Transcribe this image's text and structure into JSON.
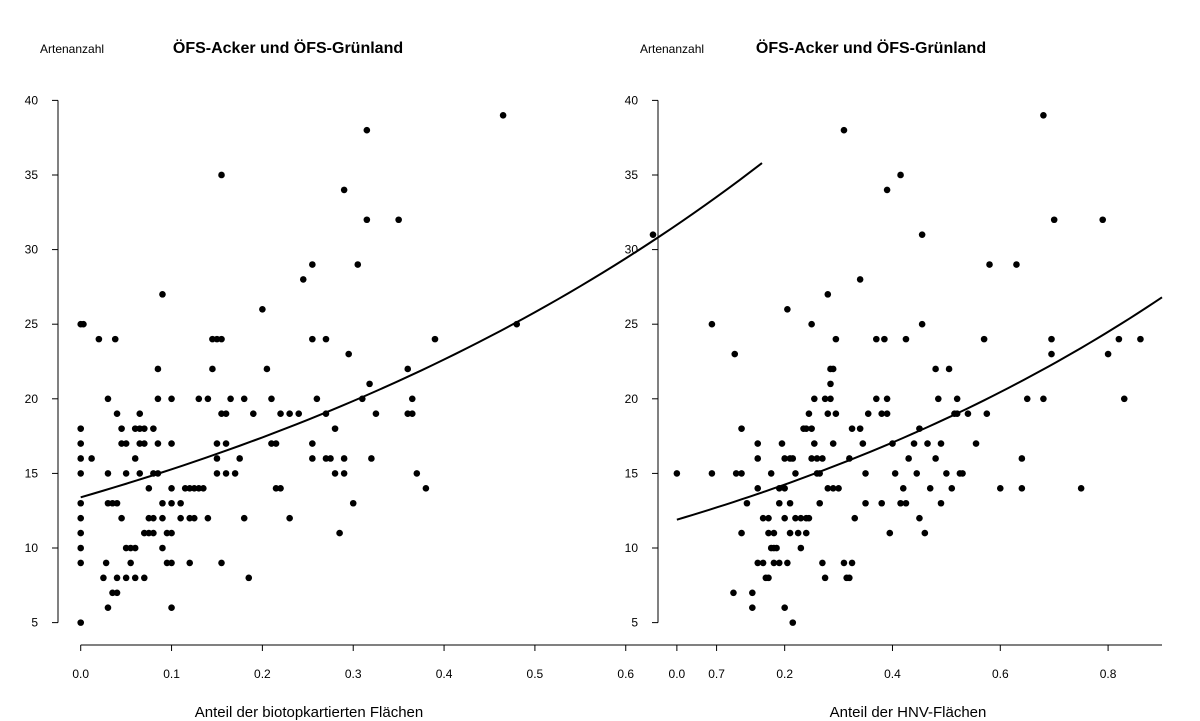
{
  "chart_data": [
    {
      "type": "scatter",
      "title": "ÖFS-Acker und ÖFS-Grünland",
      "ylabel": "Artenanzahl",
      "xlabel": "Anteil der biotopkartierten Flächen",
      "xlim": [
        -0.025,
        0.75
      ],
      "ylim": [
        3.5,
        41.5
      ],
      "x_ticks": [
        0.0,
        0.1,
        0.2,
        0.3,
        0.4,
        0.5,
        0.6,
        0.7
      ],
      "x_tick_labels": [
        "0.0",
        "0.1",
        "0.2",
        "0.3",
        "0.4",
        "0.5",
        "0.6",
        "0.7"
      ],
      "y_ticks": [
        5,
        10,
        15,
        20,
        25,
        30,
        35,
        40
      ],
      "y_tick_labels": [
        "5",
        "10",
        "15",
        "20",
        "25",
        "30",
        "35",
        "40"
      ],
      "grid": false,
      "fit_curve": {
        "type": "exponential",
        "points": [
          [
            0,
            13.4
          ],
          [
            0.2,
            17.1
          ],
          [
            0.4,
            22.5
          ],
          [
            0.6,
            29.6
          ],
          [
            0.75,
            35.8
          ]
        ]
      },
      "points": [
        [
          0.0,
          25
        ],
        [
          0.003,
          25
        ],
        [
          0.0,
          18
        ],
        [
          0.0,
          17
        ],
        [
          0.0,
          16
        ],
        [
          0.0,
          15
        ],
        [
          0.0,
          13
        ],
        [
          0.0,
          12
        ],
        [
          0.0,
          11
        ],
        [
          0.0,
          10
        ],
        [
          0.0,
          9
        ],
        [
          0.0,
          5
        ],
        [
          0.012,
          16
        ],
        [
          0.02,
          24
        ],
        [
          0.03,
          20
        ],
        [
          0.03,
          15
        ],
        [
          0.03,
          13
        ],
        [
          0.035,
          13
        ],
        [
          0.04,
          13
        ],
        [
          0.04,
          8
        ],
        [
          0.035,
          7
        ],
        [
          0.04,
          7
        ],
        [
          0.03,
          6
        ],
        [
          0.025,
          8
        ],
        [
          0.028,
          9
        ],
        [
          0.038,
          24
        ],
        [
          0.04,
          19
        ],
        [
          0.045,
          18
        ],
        [
          0.045,
          17
        ],
        [
          0.05,
          17
        ],
        [
          0.05,
          15
        ],
        [
          0.045,
          12
        ],
        [
          0.05,
          10
        ],
        [
          0.055,
          10
        ],
        [
          0.06,
          10
        ],
        [
          0.05,
          8
        ],
        [
          0.06,
          8
        ],
        [
          0.055,
          9
        ],
        [
          0.06,
          16
        ],
        [
          0.06,
          18
        ],
        [
          0.065,
          18
        ],
        [
          0.07,
          18
        ],
        [
          0.065,
          19
        ],
        [
          0.065,
          17
        ],
        [
          0.07,
          17
        ],
        [
          0.065,
          15
        ],
        [
          0.07,
          11
        ],
        [
          0.075,
          11
        ],
        [
          0.075,
          12
        ],
        [
          0.08,
          12
        ],
        [
          0.08,
          11
        ],
        [
          0.07,
          8
        ],
        [
          0.075,
          14
        ],
        [
          0.08,
          18
        ],
        [
          0.085,
          17
        ],
        [
          0.085,
          20
        ],
        [
          0.085,
          22
        ],
        [
          0.08,
          15
        ],
        [
          0.085,
          15
        ],
        [
          0.09,
          13
        ],
        [
          0.09,
          12
        ],
        [
          0.09,
          10
        ],
        [
          0.095,
          11
        ],
        [
          0.09,
          27
        ],
        [
          0.1,
          20
        ],
        [
          0.1,
          17
        ],
        [
          0.1,
          14
        ],
        [
          0.1,
          13
        ],
        [
          0.1,
          11
        ],
        [
          0.095,
          9
        ],
        [
          0.1,
          9
        ],
        [
          0.1,
          6
        ],
        [
          0.11,
          13
        ],
        [
          0.11,
          12
        ],
        [
          0.115,
          14
        ],
        [
          0.12,
          14
        ],
        [
          0.12,
          12
        ],
        [
          0.12,
          9
        ],
        [
          0.125,
          14
        ],
        [
          0.125,
          12
        ],
        [
          0.13,
          20
        ],
        [
          0.13,
          14
        ],
        [
          0.135,
          14
        ],
        [
          0.14,
          20
        ],
        [
          0.14,
          12
        ],
        [
          0.145,
          22
        ],
        [
          0.145,
          24
        ],
        [
          0.15,
          24
        ],
        [
          0.15,
          17
        ],
        [
          0.15,
          16
        ],
        [
          0.15,
          15
        ],
        [
          0.155,
          35
        ],
        [
          0.155,
          24
        ],
        [
          0.155,
          19
        ],
        [
          0.16,
          19
        ],
        [
          0.16,
          15
        ],
        [
          0.16,
          17
        ],
        [
          0.155,
          9
        ],
        [
          0.165,
          20
        ],
        [
          0.17,
          15
        ],
        [
          0.175,
          16
        ],
        [
          0.18,
          20
        ],
        [
          0.18,
          12
        ],
        [
          0.185,
          8
        ],
        [
          0.19,
          19
        ],
        [
          0.2,
          26
        ],
        [
          0.205,
          22
        ],
        [
          0.21,
          20
        ],
        [
          0.21,
          17
        ],
        [
          0.215,
          17
        ],
        [
          0.215,
          14
        ],
        [
          0.22,
          14
        ],
        [
          0.22,
          19
        ],
        [
          0.23,
          19
        ],
        [
          0.23,
          12
        ],
        [
          0.24,
          19
        ],
        [
          0.245,
          28
        ],
        [
          0.255,
          29
        ],
        [
          0.255,
          24
        ],
        [
          0.255,
          17
        ],
        [
          0.255,
          16
        ],
        [
          0.26,
          20
        ],
        [
          0.27,
          24
        ],
        [
          0.27,
          19
        ],
        [
          0.27,
          16
        ],
        [
          0.275,
          16
        ],
        [
          0.28,
          15
        ],
        [
          0.28,
          18
        ],
        [
          0.285,
          11
        ],
        [
          0.29,
          34
        ],
        [
          0.29,
          16
        ],
        [
          0.29,
          15
        ],
        [
          0.295,
          23
        ],
        [
          0.3,
          13
        ],
        [
          0.305,
          29
        ],
        [
          0.31,
          20
        ],
        [
          0.315,
          38
        ],
        [
          0.315,
          32
        ],
        [
          0.318,
          21
        ],
        [
          0.32,
          16
        ],
        [
          0.325,
          19
        ],
        [
          0.35,
          32
        ],
        [
          0.36,
          22
        ],
        [
          0.36,
          19
        ],
        [
          0.365,
          19
        ],
        [
          0.365,
          20
        ],
        [
          0.37,
          15
        ],
        [
          0.38,
          14
        ],
        [
          0.39,
          24
        ],
        [
          0.465,
          39
        ],
        [
          0.48,
          25
        ],
        [
          0.63,
          31
        ],
        [
          0.72,
          23
        ]
      ]
    },
    {
      "type": "scatter",
      "title": "ÖFS-Acker und ÖFS-Grünland",
      "ylabel": "Artenanzahl",
      "xlabel": "Anteil der HNV-Flächen",
      "xlim": [
        -0.035,
        0.9
      ],
      "ylim": [
        3.5,
        41.5
      ],
      "x_ticks": [
        0.0,
        0.2,
        0.4,
        0.6,
        0.8
      ],
      "x_tick_labels": [
        "0.0",
        "0.2",
        "0.4",
        "0.6",
        "0.8"
      ],
      "y_ticks": [
        5,
        10,
        15,
        20,
        25,
        30,
        35,
        40
      ],
      "y_tick_labels": [
        "5",
        "10",
        "15",
        "20",
        "25",
        "30",
        "35",
        "40"
      ],
      "grid": false,
      "fit_curve": {
        "type": "exponential",
        "points": [
          [
            0,
            11.9
          ],
          [
            0.2,
            13.9
          ],
          [
            0.4,
            16.4
          ],
          [
            0.6,
            19.9
          ],
          [
            0.8,
            24.2
          ],
          [
            0.9,
            26.8
          ]
        ]
      },
      "points": [
        [
          0.0,
          15
        ],
        [
          0.065,
          25
        ],
        [
          0.065,
          15
        ],
        [
          0.105,
          7
        ],
        [
          0.11,
          15
        ],
        [
          0.12,
          18
        ],
        [
          0.12,
          15
        ],
        [
          0.12,
          11
        ],
        [
          0.13,
          13
        ],
        [
          0.14,
          7
        ],
        [
          0.14,
          6
        ],
        [
          0.15,
          17
        ],
        [
          0.15,
          16
        ],
        [
          0.15,
          14
        ],
        [
          0.15,
          9
        ],
        [
          0.16,
          12
        ],
        [
          0.16,
          9
        ],
        [
          0.165,
          8
        ],
        [
          0.17,
          12
        ],
        [
          0.17,
          8
        ],
        [
          0.17,
          11
        ],
        [
          0.175,
          15
        ],
        [
          0.175,
          10
        ],
        [
          0.18,
          10
        ],
        [
          0.18,
          9
        ],
        [
          0.18,
          11
        ],
        [
          0.185,
          10
        ],
        [
          0.19,
          14
        ],
        [
          0.19,
          13
        ],
        [
          0.19,
          9
        ],
        [
          0.195,
          17
        ],
        [
          0.2,
          14
        ],
        [
          0.2,
          12
        ],
        [
          0.2,
          16
        ],
        [
          0.2,
          6
        ],
        [
          0.205,
          26
        ],
        [
          0.205,
          9
        ],
        [
          0.21,
          16
        ],
        [
          0.21,
          13
        ],
        [
          0.21,
          11
        ],
        [
          0.215,
          16
        ],
        [
          0.215,
          5
        ],
        [
          0.22,
          15
        ],
        [
          0.22,
          12
        ],
        [
          0.225,
          11
        ],
        [
          0.23,
          12
        ],
        [
          0.23,
          10
        ],
        [
          0.235,
          18
        ],
        [
          0.24,
          18
        ],
        [
          0.24,
          12
        ],
        [
          0.24,
          11
        ],
        [
          0.245,
          19
        ],
        [
          0.245,
          12
        ],
        [
          0.25,
          25
        ],
        [
          0.25,
          18
        ],
        [
          0.25,
          16
        ],
        [
          0.255,
          20
        ],
        [
          0.255,
          17
        ],
        [
          0.26,
          16
        ],
        [
          0.26,
          15
        ],
        [
          0.265,
          15
        ],
        [
          0.265,
          13
        ],
        [
          0.27,
          9
        ],
        [
          0.27,
          16
        ],
        [
          0.275,
          8
        ],
        [
          0.275,
          20
        ],
        [
          0.28,
          27
        ],
        [
          0.28,
          19
        ],
        [
          0.28,
          14
        ],
        [
          0.285,
          22
        ],
        [
          0.285,
          21
        ],
        [
          0.285,
          20
        ],
        [
          0.29,
          22
        ],
        [
          0.29,
          17
        ],
        [
          0.29,
          14
        ],
        [
          0.295,
          19
        ],
        [
          0.295,
          24
        ],
        [
          0.3,
          14
        ],
        [
          0.31,
          38
        ],
        [
          0.31,
          9
        ],
        [
          0.315,
          8
        ],
        [
          0.32,
          8
        ],
        [
          0.32,
          16
        ],
        [
          0.325,
          18
        ],
        [
          0.325,
          9
        ],
        [
          0.33,
          12
        ],
        [
          0.34,
          28
        ],
        [
          0.34,
          18
        ],
        [
          0.345,
          17
        ],
        [
          0.35,
          13
        ],
        [
          0.35,
          15
        ],
        [
          0.355,
          19
        ],
        [
          0.37,
          24
        ],
        [
          0.37,
          20
        ],
        [
          0.38,
          19
        ],
        [
          0.38,
          13
        ],
        [
          0.385,
          24
        ],
        [
          0.39,
          34
        ],
        [
          0.39,
          19
        ],
        [
          0.39,
          20
        ],
        [
          0.395,
          11
        ],
        [
          0.4,
          17
        ],
        [
          0.405,
          15
        ],
        [
          0.415,
          35
        ],
        [
          0.415,
          13
        ],
        [
          0.42,
          14
        ],
        [
          0.425,
          24
        ],
        [
          0.425,
          13
        ],
        [
          0.43,
          16
        ],
        [
          0.44,
          17
        ],
        [
          0.445,
          15
        ],
        [
          0.45,
          18
        ],
        [
          0.45,
          12
        ],
        [
          0.455,
          25
        ],
        [
          0.455,
          31
        ],
        [
          0.46,
          11
        ],
        [
          0.465,
          17
        ],
        [
          0.47,
          14
        ],
        [
          0.48,
          22
        ],
        [
          0.48,
          16
        ],
        [
          0.485,
          20
        ],
        [
          0.49,
          17
        ],
        [
          0.49,
          13
        ],
        [
          0.5,
          15
        ],
        [
          0.505,
          22
        ],
        [
          0.51,
          14
        ],
        [
          0.515,
          19
        ],
        [
          0.52,
          20
        ],
        [
          0.52,
          19
        ],
        [
          0.525,
          15
        ],
        [
          0.53,
          15
        ],
        [
          0.54,
          19
        ],
        [
          0.555,
          17
        ],
        [
          0.57,
          24
        ],
        [
          0.575,
          19
        ],
        [
          0.58,
          29
        ],
        [
          0.6,
          14
        ],
        [
          0.63,
          29
        ],
        [
          0.64,
          14
        ],
        [
          0.64,
          16
        ],
        [
          0.65,
          20
        ],
        [
          0.68,
          39
        ],
        [
          0.68,
          20
        ],
        [
          0.695,
          24
        ],
        [
          0.695,
          23
        ],
        [
          0.7,
          32
        ],
        [
          0.75,
          14
        ],
        [
          0.79,
          32
        ],
        [
          0.8,
          23
        ],
        [
          0.82,
          24
        ],
        [
          0.83,
          20
        ],
        [
          0.86,
          24
        ]
      ]
    }
  ]
}
